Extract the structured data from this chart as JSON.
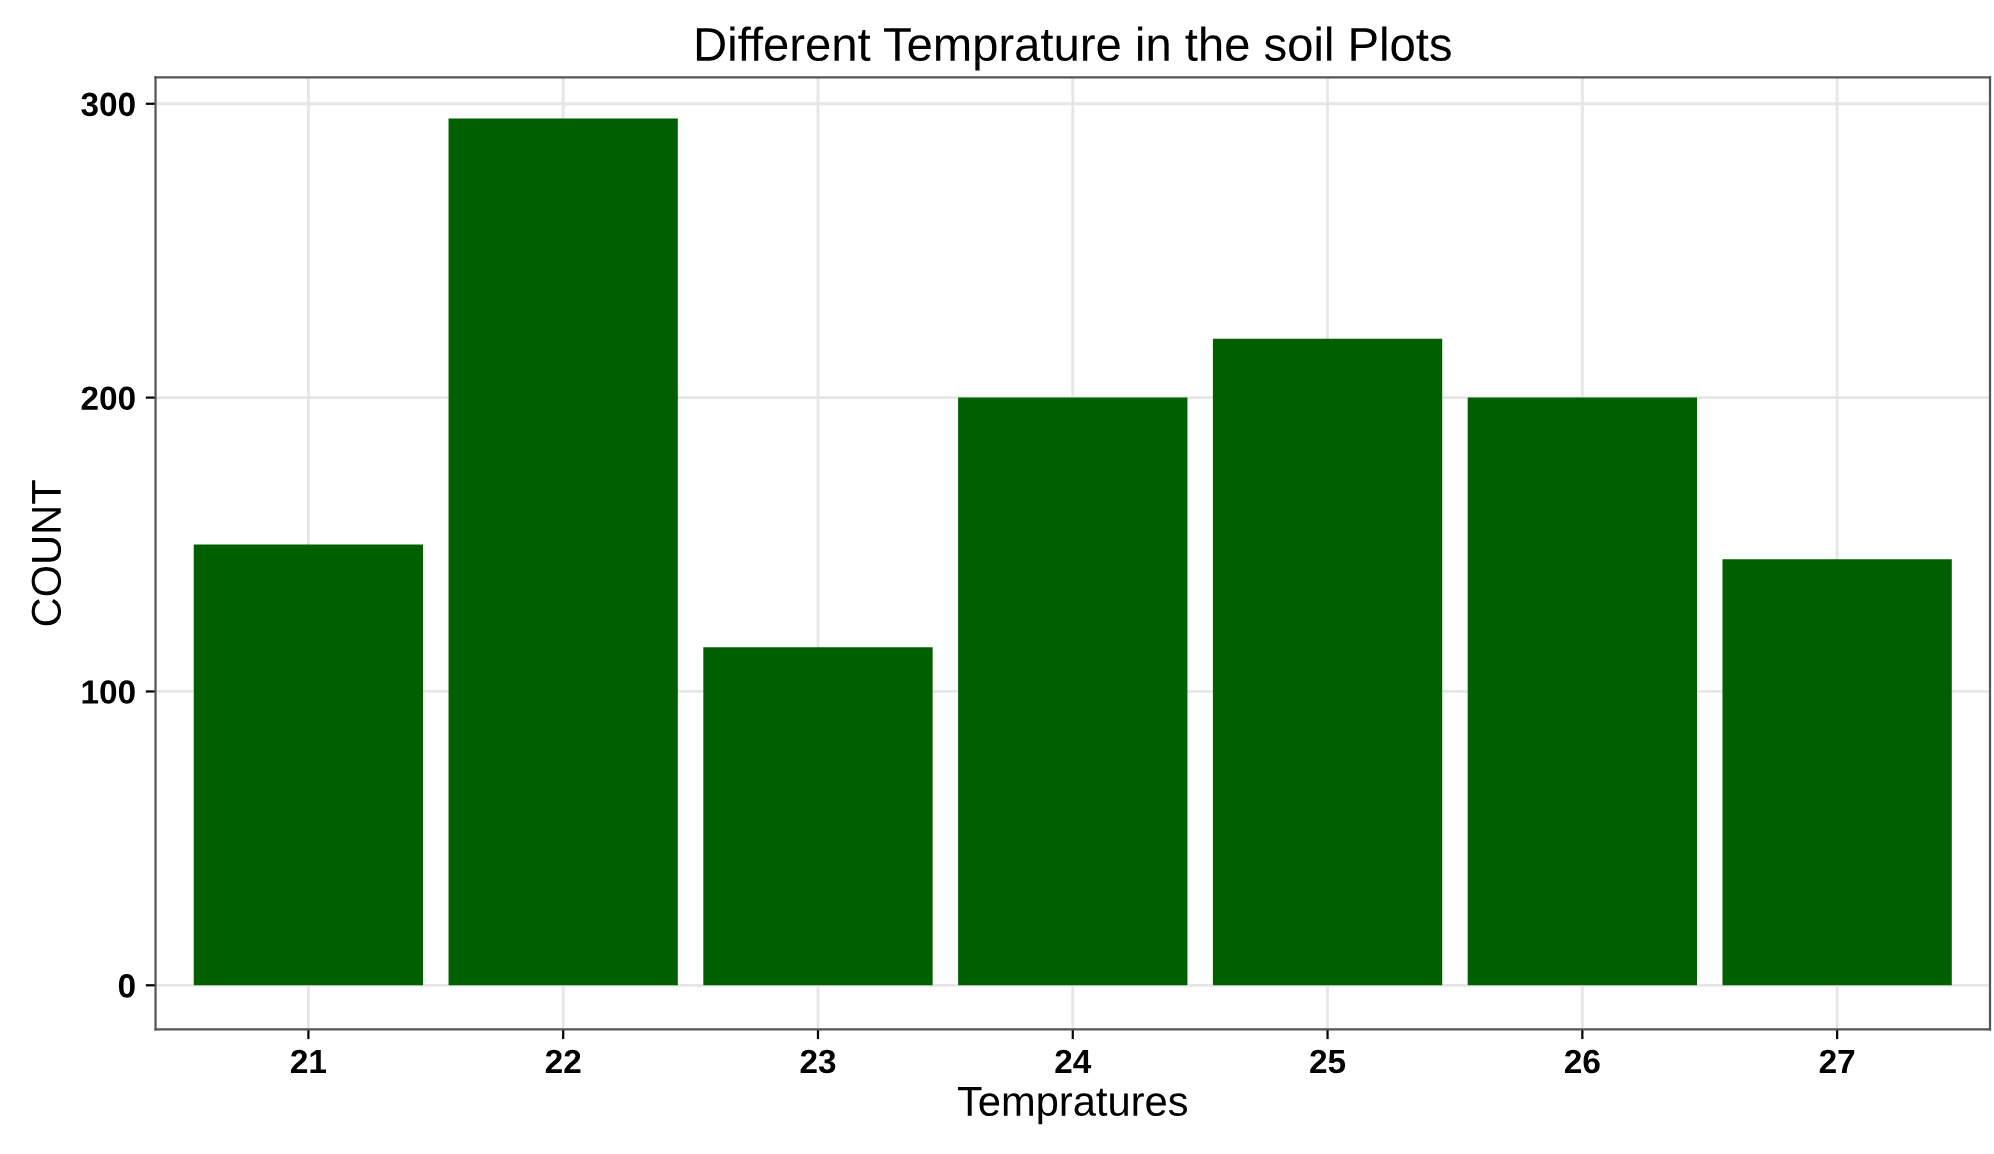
{
  "chart_data": {
    "type": "bar",
    "title": "Different Temprature in the soil Plots",
    "xlabel": "Tempratures",
    "ylabel": "COUNT",
    "categories": [
      "21",
      "22",
      "23",
      "24",
      "25",
      "26",
      "27"
    ],
    "values": [
      150,
      295,
      115,
      200,
      220,
      200,
      145
    ],
    "color": "#006000",
    "ylim": [
      -15,
      309
    ],
    "yticks": [
      0,
      100,
      200,
      300
    ],
    "grid": true
  }
}
